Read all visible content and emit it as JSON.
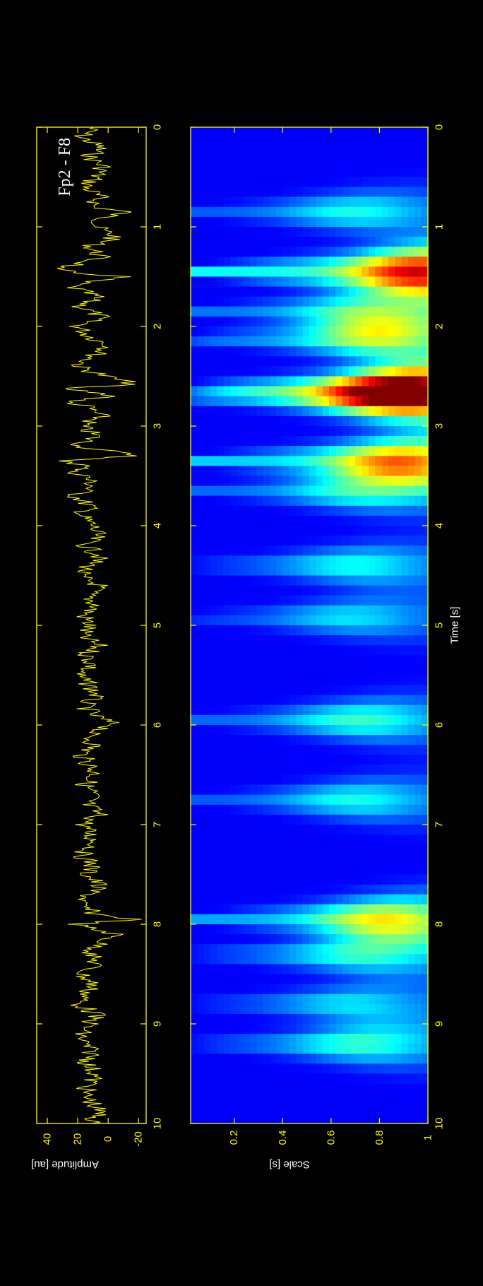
{
  "chart_data": [
    {
      "type": "line",
      "annotation": "Fp2 - F8",
      "ylabel": "Amplitude [au]",
      "xlim": [
        0,
        10
      ],
      "ylim": [
        -25,
        47
      ],
      "xticks": [
        0,
        1,
        2,
        3,
        4,
        5,
        6,
        7,
        8,
        9,
        10
      ],
      "yticks": [
        -20,
        0,
        20,
        40
      ],
      "ytick_labels": [
        "-20",
        "0",
        "20",
        "40"
      ],
      "line_color": "#ffff00",
      "series": [
        {
          "x": [
            0.0,
            0.1,
            0.2,
            0.3,
            0.4,
            0.5,
            0.6,
            0.7,
            0.8,
            0.85,
            0.9,
            1.0,
            1.1,
            1.2,
            1.3,
            1.38,
            1.42,
            1.46,
            1.5,
            1.55,
            1.6,
            1.7,
            1.8,
            1.9,
            2.0,
            2.1,
            2.2,
            2.3,
            2.4,
            2.5,
            2.58,
            2.62,
            2.66,
            2.7,
            2.75,
            2.8,
            2.9,
            3.0,
            3.1,
            3.2,
            3.3,
            3.35,
            3.4,
            3.45,
            3.5,
            3.6,
            3.7,
            3.8,
            3.9,
            4.0,
            4.1,
            4.2,
            4.3,
            4.4,
            4.5,
            4.6,
            4.7,
            4.8,
            4.9,
            5.0,
            5.1,
            5.2,
            5.3,
            5.4,
            5.5,
            5.6,
            5.7,
            5.8,
            5.9,
            6.0,
            6.1,
            6.2,
            6.3,
            6.4,
            6.5,
            6.6,
            6.7,
            6.8,
            6.9,
            7.0,
            7.1,
            7.2,
            7.3,
            7.4,
            7.5,
            7.6,
            7.7,
            7.8,
            7.9,
            7.95,
            8.0,
            8.05,
            8.1,
            8.2,
            8.3,
            8.4,
            8.5,
            8.6,
            8.7,
            8.8,
            8.9,
            9.0,
            9.1,
            9.2,
            9.3,
            9.4,
            9.5,
            9.6,
            9.7,
            9.8,
            9.9,
            10.0
          ],
          "y": [
            10,
            18,
            5,
            12,
            3,
            8,
            15,
            6,
            10,
            -12,
            2,
            8,
            -5,
            12,
            5,
            20,
            40,
            22,
            -10,
            15,
            25,
            8,
            18,
            5,
            20,
            12,
            -2,
            10,
            20,
            2,
            -18,
            32,
            10,
            -6,
            28,
            15,
            5,
            18,
            8,
            20,
            -20,
            35,
            8,
            25,
            15,
            10,
            22,
            12,
            18,
            10,
            8,
            15,
            5,
            12,
            20,
            6,
            14,
            8,
            16,
            12,
            18,
            7,
            14,
            10,
            20,
            12,
            8,
            16,
            10,
            -4,
            14,
            9,
            18,
            12,
            8,
            15,
            10,
            14,
            6,
            16,
            12,
            8,
            18,
            10,
            14,
            6,
            12,
            20,
            8,
            -18,
            22,
            10,
            -5,
            6,
            12,
            8,
            18,
            10,
            14,
            20,
            8,
            12,
            18,
            16,
            10,
            14,
            8,
            12,
            16,
            10,
            6,
            12
          ]
        }
      ]
    },
    {
      "type": "heatmap",
      "xlabel": "Time [s]",
      "ylabel": "Scale [s]",
      "xlim": [
        0,
        10
      ],
      "ylim": [
        0.02,
        1
      ],
      "xticks": [
        0,
        1,
        2,
        3,
        4,
        5,
        6,
        7,
        8,
        9,
        10
      ],
      "yticks": [
        0.2,
        0.4,
        0.6,
        0.8,
        1
      ],
      "ytick_labels": [
        "0.2",
        "0.4",
        "0.6",
        "0.8",
        "1"
      ],
      "colormap": "jet",
      "events": [
        {
          "time": 0.85,
          "strength": 0.35
        },
        {
          "time": 1.45,
          "strength": 1.0
        },
        {
          "time": 1.85,
          "strength": 0.45
        },
        {
          "time": 2.12,
          "strength": 0.55
        },
        {
          "time": 2.62,
          "strength": 0.85
        },
        {
          "time": 2.72,
          "strength": 0.65
        },
        {
          "time": 3.35,
          "strength": 0.8
        },
        {
          "time": 3.65,
          "strength": 0.4
        },
        {
          "time": 4.4,
          "strength": 0.35
        },
        {
          "time": 4.92,
          "strength": 0.3
        },
        {
          "time": 5.95,
          "strength": 0.4
        },
        {
          "time": 6.75,
          "strength": 0.35
        },
        {
          "time": 7.95,
          "strength": 0.65
        },
        {
          "time": 8.3,
          "strength": 0.4
        },
        {
          "time": 8.8,
          "strength": 0.3
        },
        {
          "time": 9.2,
          "strength": 0.4
        }
      ]
    }
  ]
}
